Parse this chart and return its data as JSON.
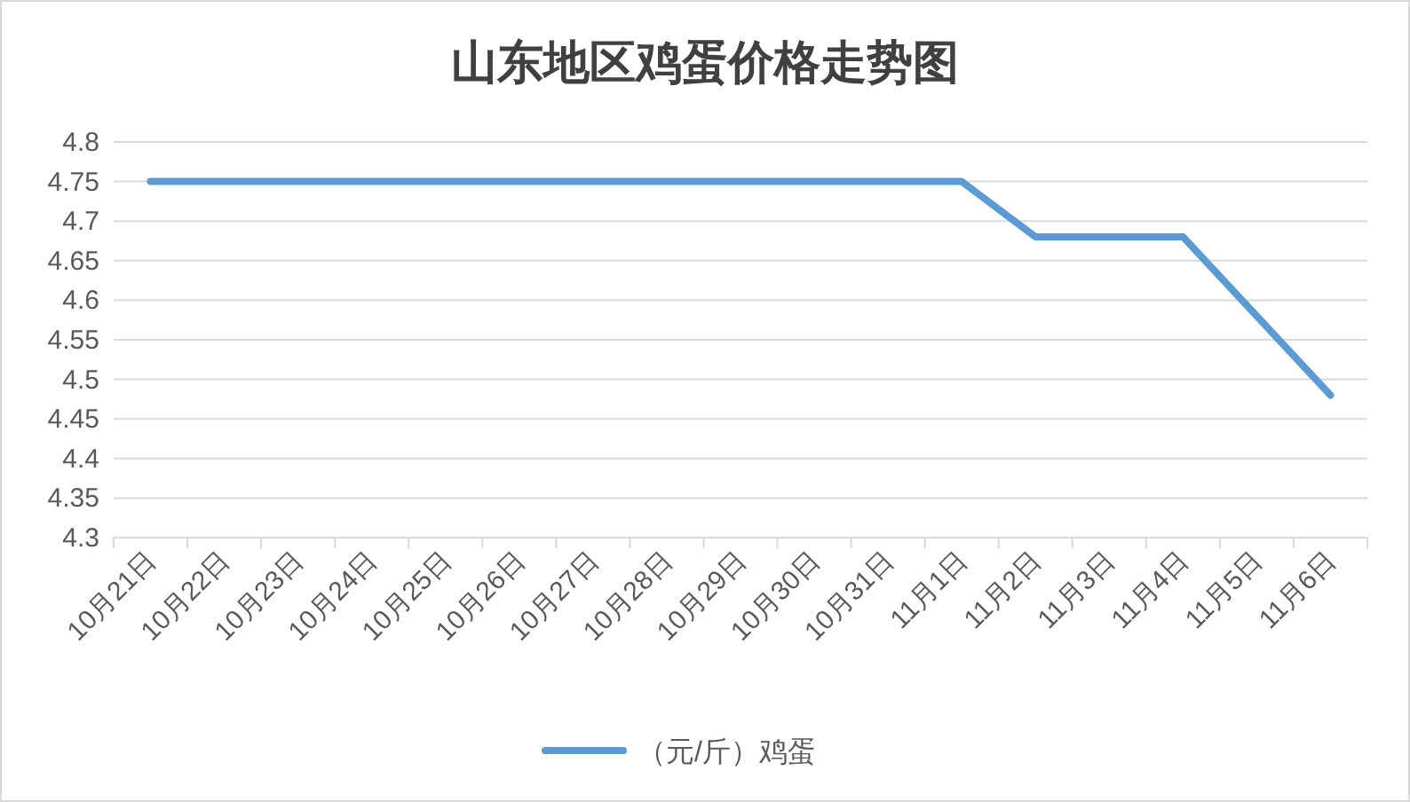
{
  "chart_data": {
    "type": "line",
    "title": "山东地区鸡蛋价格走势图",
    "categories": [
      "10月21日",
      "10月22日",
      "10月23日",
      "10月24日",
      "10月25日",
      "10月26日",
      "10月27日",
      "10月28日",
      "10月29日",
      "10月30日",
      "10月31日",
      "11月1日",
      "11月2日",
      "11月3日",
      "11月4日",
      "11月5日",
      "11月6日"
    ],
    "series": [
      {
        "name": "（元/斤）鸡蛋",
        "color": "#5b9bd5",
        "values": [
          4.75,
          4.75,
          4.75,
          4.75,
          4.75,
          4.75,
          4.75,
          4.75,
          4.75,
          4.75,
          4.75,
          4.75,
          4.68,
          4.68,
          4.68,
          4.58,
          4.48
        ]
      }
    ],
    "ylim": [
      4.3,
      4.8
    ],
    "yticks": [
      4.3,
      4.35,
      4.4,
      4.45,
      4.5,
      4.55,
      4.6,
      4.65,
      4.7,
      4.75,
      4.8
    ],
    "grid": "y",
    "legend": "bottom"
  }
}
